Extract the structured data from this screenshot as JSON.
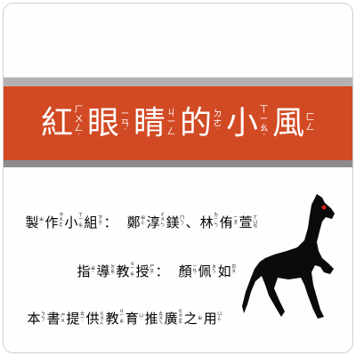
{
  "title": {
    "chars": [
      {
        "c": "紅",
        "zy": [
          "ㄏ",
          "ㄨ",
          "ㄥ"
        ],
        "tone": "ˊ"
      },
      {
        "c": "眼",
        "zy": [
          "ㄧ",
          "ㄢ"
        ],
        "tone": "ˇ"
      },
      {
        "c": "睛",
        "zy": [
          "ㄐ",
          "ㄧ",
          "ㄥ"
        ],
        "tone": ""
      },
      {
        "c": "的",
        "zy": [
          "ㄉ",
          "ㄜ"
        ],
        "tone": "˙"
      },
      {
        "c": "小",
        "zy": [
          "ㄒ",
          "ㄧ",
          "ㄠ"
        ],
        "tone": "ˇ"
      },
      {
        "c": "風",
        "zy": [
          "ㄈ",
          "ㄥ"
        ],
        "tone": ""
      }
    ]
  },
  "credits": [
    {
      "label": [
        {
          "c": "製",
          "zy": [
            "ㄓ"
          ],
          "tone": "ˋ"
        },
        {
          "c": "作",
          "zy": [
            "ㄗ",
            "ㄨ",
            "ㄛ"
          ],
          "tone": "ˋ"
        },
        {
          "c": "小",
          "zy": [
            "ㄒ",
            "ㄧ",
            "ㄠ"
          ],
          "tone": "ˇ"
        },
        {
          "c": "組",
          "zy": [
            "ㄗ",
            "ㄨ"
          ],
          "tone": "ˇ"
        },
        {
          "c": "：",
          "zy": [],
          "tone": ""
        }
      ],
      "value": [
        {
          "c": "鄭",
          "zy": [
            "ㄓ",
            "ㄥ"
          ],
          "tone": "ˋ"
        },
        {
          "c": "淳",
          "zy": [
            "ㄔ",
            "ㄨ",
            "ㄣ"
          ],
          "tone": "ˊ"
        },
        {
          "c": "鎂",
          "zy": [
            "ㄇ",
            "ㄟ"
          ],
          "tone": "ˇ"
        },
        {
          "c": "、",
          "zy": [],
          "tone": ""
        },
        {
          "c": "林",
          "zy": [
            "ㄌ",
            "ㄧ",
            "ㄣ"
          ],
          "tone": "ˊ"
        },
        {
          "c": "侑",
          "zy": [
            "ㄧ",
            "ㄡ"
          ],
          "tone": "ˋ"
        },
        {
          "c": "萱",
          "zy": [
            "ㄒ",
            "ㄩ",
            "ㄢ"
          ],
          "tone": ""
        }
      ]
    },
    {
      "label": [
        {
          "c": "指",
          "zy": [
            "ㄓ"
          ],
          "tone": "ˇ"
        },
        {
          "c": "導",
          "zy": [
            "ㄉ",
            "ㄠ"
          ],
          "tone": "ˇ"
        },
        {
          "c": "教",
          "zy": [
            "ㄐ",
            "ㄧ",
            "ㄠ"
          ],
          "tone": "ˋ"
        },
        {
          "c": "授",
          "zy": [
            "ㄕ",
            "ㄡ"
          ],
          "tone": "ˋ"
        },
        {
          "c": "：",
          "zy": [],
          "tone": ""
        }
      ],
      "value": [
        {
          "c": "顏",
          "zy": [
            "ㄧ",
            "ㄢ"
          ],
          "tone": "ˊ"
        },
        {
          "c": "佩",
          "zy": [
            "ㄆ",
            "ㄟ"
          ],
          "tone": "ˋ"
        },
        {
          "c": "如",
          "zy": [
            "ㄖ",
            "ㄨ"
          ],
          "tone": "ˊ"
        }
      ]
    },
    {
      "label": [
        {
          "c": "本",
          "zy": [
            "ㄅ",
            "ㄣ"
          ],
          "tone": "ˇ"
        },
        {
          "c": "書",
          "zy": [
            "ㄕ",
            "ㄨ"
          ],
          "tone": ""
        },
        {
          "c": "提",
          "zy": [
            "ㄊ",
            "ㄧ"
          ],
          "tone": "ˊ"
        },
        {
          "c": "供",
          "zy": [
            "ㄍ",
            "ㄨ",
            "ㄥ"
          ],
          "tone": ""
        },
        {
          "c": "教",
          "zy": [
            "ㄐ",
            "ㄧ",
            "ㄠ"
          ],
          "tone": "ˋ"
        },
        {
          "c": "育",
          "zy": [
            "ㄩ"
          ],
          "tone": "ˋ"
        },
        {
          "c": "推",
          "zy": [
            "ㄊ",
            "ㄨ",
            "ㄟ"
          ],
          "tone": ""
        },
        {
          "c": "廣",
          "zy": [
            "ㄍ",
            "ㄨ",
            "ㄤ"
          ],
          "tone": "ˇ"
        },
        {
          "c": "之",
          "zy": [
            "ㄓ"
          ],
          "tone": ""
        },
        {
          "c": "用",
          "zy": [
            "ㄩ",
            "ㄥ"
          ],
          "tone": "ˋ"
        }
      ],
      "value": []
    }
  ],
  "colors": {
    "banner": "#d24a24",
    "gray_light": "#b4b2b1",
    "gray_dark": "#8c8a8a",
    "horse": "#0b0b0b",
    "horse_eye": "#e0201a"
  },
  "image": {
    "icon": "black-horse-silhouette"
  }
}
